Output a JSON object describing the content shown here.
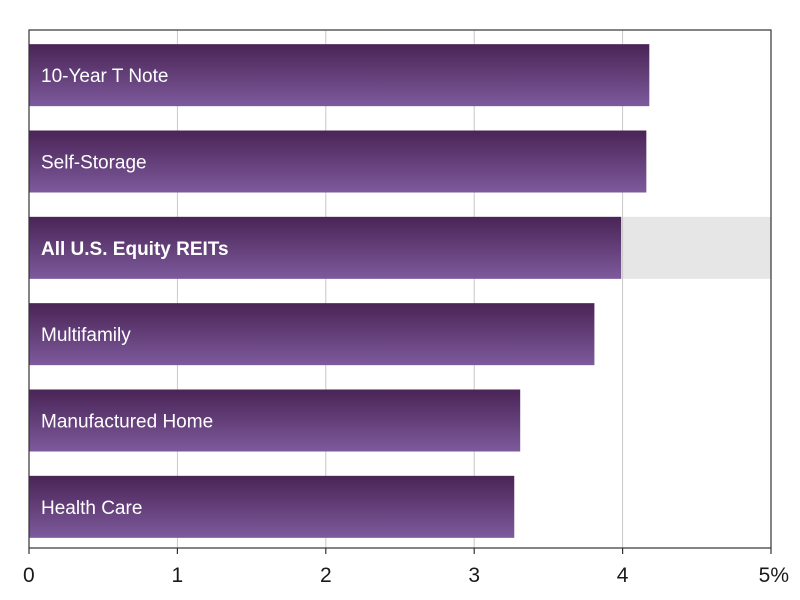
{
  "chart_data": {
    "type": "bar",
    "orientation": "horizontal",
    "categories": [
      "10-Year T Note",
      "Self-Storage",
      "All U.S. Equity REITs",
      "Multifamily",
      "Manufactured Home",
      "Health Care"
    ],
    "values": [
      4.18,
      4.16,
      3.99,
      3.81,
      3.31,
      3.27
    ],
    "highlight_category": "All U.S. Equity REITs",
    "xlim": [
      0,
      5
    ],
    "x_ticks": [
      "0",
      "1",
      "2",
      "3",
      "4",
      "5%"
    ],
    "grid": true,
    "colors": {
      "bar_top": "#4a2456",
      "bar_bottom": "#7d5a9c",
      "highlight_band": "#e6e6e7",
      "grid": "#c8c8c8",
      "frame": "#333333"
    }
  }
}
